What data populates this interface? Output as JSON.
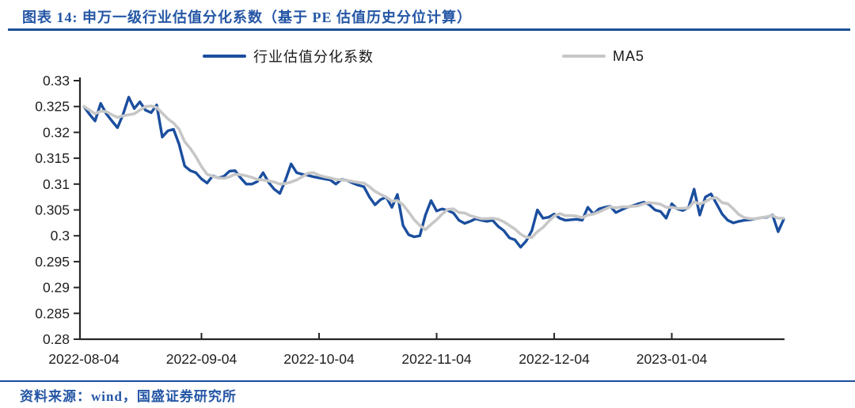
{
  "header": {
    "title": "图表 14:  申万一级行业估值分化系数（基于 PE 估值历史分位计算）"
  },
  "footer": {
    "source": "资料来源：wind，国盛证券研究所"
  },
  "colors": {
    "accent_blue": "#1d4e9b",
    "text_blue": "#2456a5",
    "series_main": "#1b4e9e",
    "series_ma5": "#c7c7c7",
    "axis": "#262626",
    "tick_text": "#1f1f1f"
  },
  "chart_data": {
    "type": "line",
    "title": "申万一级行业估值分化系数（基于 PE 估值历史分位计算）",
    "xlabel": "",
    "ylabel": "",
    "ylim": [
      0.28,
      0.33
    ],
    "y_tick_labels": [
      "0.33",
      "0.325",
      "0.32",
      "0.315",
      "0.31",
      "0.305",
      "0.3",
      "0.295",
      "0.29",
      "0.285",
      "0.28"
    ],
    "x_tick_labels": [
      "2022-08-04",
      "2022-09-04",
      "2022-10-04",
      "2022-11-04",
      "2022-12-04",
      "2023-01-04"
    ],
    "x_tick_indices": [
      0,
      21,
      42,
      63,
      84,
      105
    ],
    "grid": false,
    "legend_position": "top",
    "series": [
      {
        "name": "行业估值分化系数",
        "color": "#1b4e9e",
        "values": [
          0.325,
          0.3235,
          0.3222,
          0.3256,
          0.3236,
          0.3222,
          0.3209,
          0.3235,
          0.3268,
          0.3246,
          0.3259,
          0.3243,
          0.3238,
          0.3253,
          0.3191,
          0.3203,
          0.3206,
          0.3177,
          0.3135,
          0.3126,
          0.3122,
          0.311,
          0.3102,
          0.3116,
          0.3112,
          0.3115,
          0.3125,
          0.3126,
          0.3112,
          0.31,
          0.31,
          0.3105,
          0.3122,
          0.3103,
          0.309,
          0.3082,
          0.3108,
          0.3139,
          0.3122,
          0.3119,
          0.3117,
          0.3114,
          0.3112,
          0.311,
          0.3108,
          0.31,
          0.3109,
          0.3107,
          0.3102,
          0.3098,
          0.3095,
          0.3075,
          0.306,
          0.307,
          0.3075,
          0.3055,
          0.308,
          0.302,
          0.3002,
          0.2998,
          0.3,
          0.304,
          0.3068,
          0.3048,
          0.3052,
          0.3049,
          0.3044,
          0.303,
          0.3024,
          0.3028,
          0.3033,
          0.303,
          0.3028,
          0.303,
          0.3018,
          0.301,
          0.2996,
          0.2992,
          0.2978,
          0.299,
          0.301,
          0.305,
          0.3034,
          0.3036,
          0.3042,
          0.3034,
          0.303,
          0.3031,
          0.3032,
          0.303,
          0.3055,
          0.3042,
          0.3052,
          0.3055,
          0.3057,
          0.3045,
          0.305,
          0.3055,
          0.3058,
          0.3062,
          0.3065,
          0.306,
          0.305,
          0.3047,
          0.3034,
          0.3062,
          0.3052,
          0.3049,
          0.3055,
          0.309,
          0.304,
          0.3075,
          0.3081,
          0.3062,
          0.3042,
          0.303,
          0.3025,
          0.3028,
          0.303,
          0.3031,
          0.3033,
          0.3035,
          0.3036,
          0.304,
          0.3008,
          0.3032
        ]
      },
      {
        "name": "MA5",
        "color": "#c7c7c7",
        "values": [
          0.325,
          0.3243,
          0.3236,
          0.3241,
          0.324,
          0.3234,
          0.3229,
          0.3232,
          0.3234,
          0.3236,
          0.3243,
          0.325,
          0.3251,
          0.3248,
          0.3237,
          0.3226,
          0.3218,
          0.3206,
          0.3182,
          0.3169,
          0.3153,
          0.3134,
          0.3119,
          0.3115,
          0.3112,
          0.3111,
          0.3114,
          0.3119,
          0.3118,
          0.3116,
          0.3113,
          0.3109,
          0.3108,
          0.3106,
          0.3104,
          0.31,
          0.3101,
          0.3104,
          0.3108,
          0.3114,
          0.3121,
          0.3122,
          0.3117,
          0.3114,
          0.3112,
          0.3109,
          0.3108,
          0.3107,
          0.3105,
          0.3103,
          0.3102,
          0.3095,
          0.3086,
          0.308,
          0.3075,
          0.3067,
          0.3068,
          0.306,
          0.3046,
          0.3031,
          0.302,
          0.3012,
          0.3022,
          0.3031,
          0.3042,
          0.3051,
          0.3052,
          0.3045,
          0.3044,
          0.3039,
          0.3036,
          0.3033,
          0.3033,
          0.3034,
          0.3032,
          0.3027,
          0.302,
          0.3013,
          0.3003,
          0.2997,
          0.2997,
          0.3008,
          0.3016,
          0.3028,
          0.3038,
          0.3043,
          0.3039,
          0.3039,
          0.3038,
          0.3035,
          0.304,
          0.3042,
          0.3046,
          0.3051,
          0.3056,
          0.3054,
          0.3056,
          0.3056,
          0.3057,
          0.3058,
          0.3062,
          0.3064,
          0.3063,
          0.3061,
          0.3055,
          0.3055,
          0.3053,
          0.3053,
          0.3054,
          0.3066,
          0.3061,
          0.3066,
          0.3072,
          0.3074,
          0.3064,
          0.3062,
          0.3052,
          0.3041,
          0.3035,
          0.3033,
          0.3033,
          0.3035,
          0.3037,
          0.3039,
          0.3034,
          0.3034
        ]
      }
    ]
  }
}
